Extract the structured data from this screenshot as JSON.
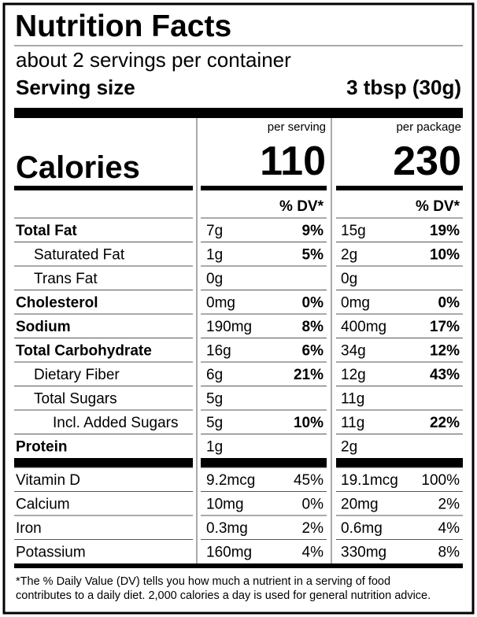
{
  "header": {
    "title": "Nutrition Facts",
    "servings": "about 2 servings per container",
    "serving_size_label": "Serving size",
    "serving_size": "3 tbsp (30g)"
  },
  "calories": {
    "label": "Calories",
    "columns": [
      {
        "heading": "per serving",
        "value": "110"
      },
      {
        "heading": "per package",
        "value": "230"
      }
    ]
  },
  "dv_heading": [
    "% DV*",
    "% DV*"
  ],
  "nutrients": [
    {
      "name": "Total Fat",
      "bold": true,
      "level": 0,
      "values": [
        [
          "7g",
          "9%"
        ],
        [
          "15g",
          "19%"
        ]
      ]
    },
    {
      "name": "Saturated Fat",
      "bold": false,
      "level": 1,
      "values": [
        [
          "1g",
          "5%"
        ],
        [
          "2g",
          "10%"
        ]
      ]
    },
    {
      "name": "Trans Fat",
      "bold": false,
      "level": 1,
      "values": [
        [
          "0g"
        ],
        [
          "0g"
        ]
      ]
    },
    {
      "name": "Cholesterol",
      "bold": true,
      "level": 0,
      "values": [
        [
          "0mg",
          "0%"
        ],
        [
          "0mg",
          "0%"
        ]
      ]
    },
    {
      "name": "Sodium",
      "bold": true,
      "level": 0,
      "values": [
        [
          "190mg",
          "8%"
        ],
        [
          "400mg",
          "17%"
        ]
      ]
    },
    {
      "name": "Total Carbohydrate",
      "bold": true,
      "level": 0,
      "values": [
        [
          "16g",
          "6%"
        ],
        [
          "34g",
          "12%"
        ]
      ]
    },
    {
      "name": "Dietary Fiber",
      "bold": false,
      "level": 1,
      "values": [
        [
          "6g",
          "21%"
        ],
        [
          "12g",
          "43%"
        ]
      ]
    },
    {
      "name": "Total Sugars",
      "bold": false,
      "level": 1,
      "values": [
        [
          "5g"
        ],
        [
          "11g"
        ]
      ]
    },
    {
      "name": "Incl. Added Sugars",
      "bold": false,
      "level": 2,
      "values": [
        [
          "5g",
          "10%"
        ],
        [
          "11g",
          "22%"
        ]
      ]
    },
    {
      "name": "Protein",
      "bold": true,
      "level": 0,
      "values": [
        [
          "1g"
        ],
        [
          "2g"
        ]
      ]
    }
  ],
  "vitamins": [
    {
      "name": "Vitamin D",
      "values": [
        [
          "9.2mcg",
          "45%"
        ],
        [
          "19.1mcg",
          "100%"
        ]
      ]
    },
    {
      "name": "Calcium",
      "values": [
        [
          "10mg",
          "0%"
        ],
        [
          "20mg",
          "2%"
        ]
      ]
    },
    {
      "name": "Iron",
      "values": [
        [
          "0.3mg",
          "2%"
        ],
        [
          "0.6mg",
          "4%"
        ]
      ]
    },
    {
      "name": "Potassium",
      "values": [
        [
          "160mg",
          "4%"
        ],
        [
          "330mg",
          "8%"
        ]
      ]
    }
  ],
  "footnote": [
    "*The % Daily Value (DV) tells you how much a nutrient in a serving of food",
    "contributes to a daily diet. 2,000 calories a day is used for general nutrition advice."
  ]
}
